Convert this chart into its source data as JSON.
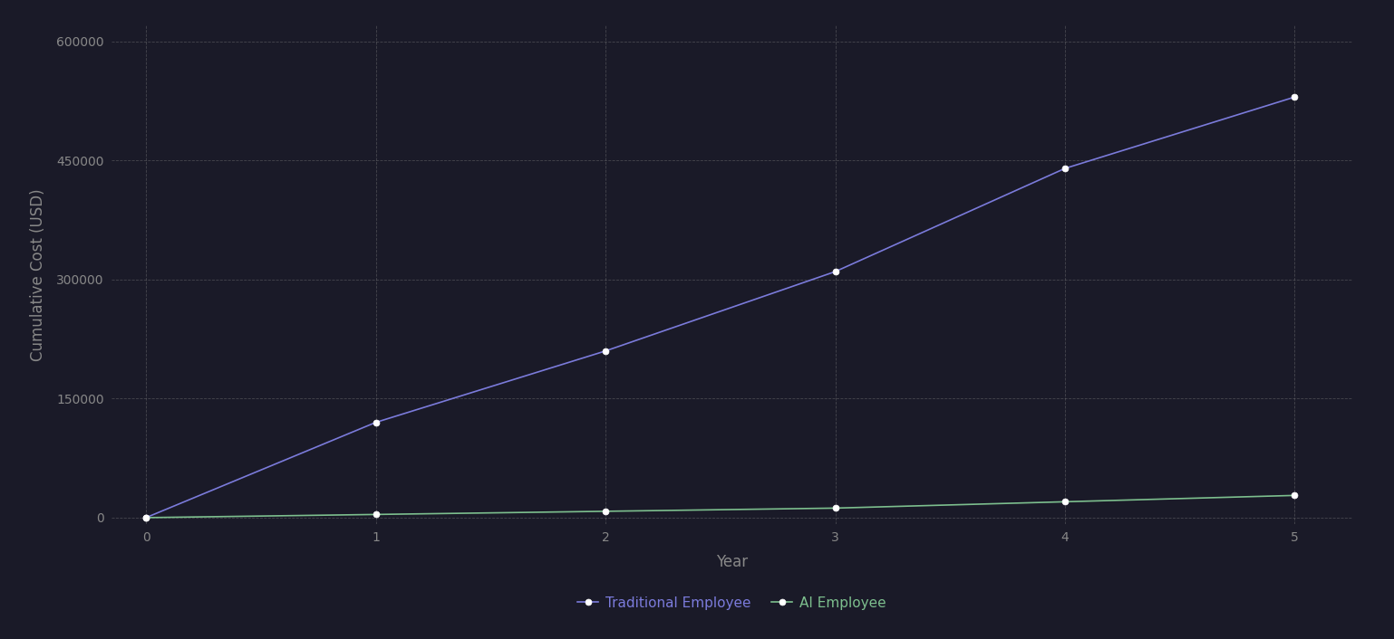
{
  "xlabel": "Year",
  "ylabel": "Cumulative Cost (USD)",
  "background_color": "#1a1a28",
  "plot_bg_color": "#1a1a28",
  "grid_color": "#888888",
  "tick_color": "#888888",
  "label_color": "#888888",
  "traditional_x": [
    0,
    1,
    2,
    3,
    4,
    5
  ],
  "traditional_y": [
    0,
    120000,
    210000,
    310000,
    440000,
    530000
  ],
  "traditional_color": "#7b7bdb",
  "traditional_label": "Traditional Employee",
  "ai_x": [
    0,
    1,
    2,
    3,
    4,
    5
  ],
  "ai_y": [
    0,
    4000,
    8000,
    12000,
    20000,
    28000
  ],
  "ai_color": "#7dbf8e",
  "ai_label": "AI Employee",
  "ylim": [
    -8000,
    620000
  ],
  "xlim": [
    -0.15,
    5.25
  ],
  "yticks": [
    0,
    150000,
    300000,
    450000,
    600000
  ],
  "xticks": [
    0,
    1,
    2,
    3,
    4,
    5
  ],
  "marker": "o",
  "marker_color": "#ffffff",
  "marker_size": 5,
  "linewidth": 1.2,
  "legend_fontsize": 11,
  "axis_label_fontsize": 12,
  "tick_fontsize": 10
}
